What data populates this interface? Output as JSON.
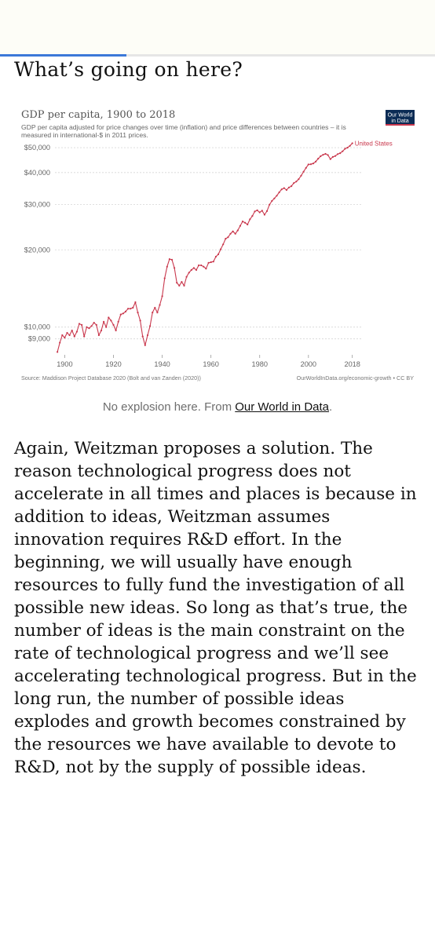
{
  "article": {
    "heading": "What’s going on here?",
    "caption_prefix": "No explosion here. From ",
    "caption_link": "Our World in Data",
    "caption_suffix": ".",
    "body_paragraph": "Again, Weitzman proposes a solution. The reason technological progress does not accelerate in all times and places is because in addition to ideas, Weitzman assumes innovation requires R&D effort. In the beginning, we will usually have enough resources to fully fund the investigation of all possible new ideas. So long as that’s true, the number of ideas is the main constraint on the rate of technological progress and we’ll see accelerating technological progress. But in the long run, the number of possible ideas explodes and growth becomes constrained by the resources we have available to devote to R&D, not by the supply of possible ideas."
  },
  "colors": {
    "line": "#c9384d",
    "logo_bg": "#0b2c55",
    "progress": "#3b78d8"
  },
  "chart_data": {
    "type": "line",
    "title": "GDP per capita, 1900 to 2018",
    "subtitle_line1": "GDP per capita adjusted for price changes over time (inflation) and price differences between countries – it is",
    "subtitle_line2": "measured in international-$ in 2011 prices.",
    "logo_line1": "Our World",
    "logo_line2": "in Data",
    "source": "Source: Maddison Project Database 2020 (Bolt and van Zanden (2020))",
    "license": "OurWorldInData.org/economic-growth • CC BY",
    "yscale": "log",
    "ylim": [
      7800,
      56000
    ],
    "xlim": [
      1896,
      2021
    ],
    "y_ticks": [
      9000,
      10000,
      20000,
      30000,
      40000,
      50000
    ],
    "y_tick_labels": [
      "$9,000",
      "$10,000",
      "$20,000",
      "$30,000",
      "$40,000",
      "$50,000"
    ],
    "x_ticks": [
      1900,
      1920,
      1940,
      1960,
      1980,
      2000,
      2018
    ],
    "grid": "horizontal dotted",
    "series": [
      {
        "name": "United States",
        "x": [
          1897,
          1898,
          1899,
          1900,
          1901,
          1902,
          1903,
          1904,
          1905,
          1906,
          1907,
          1908,
          1909,
          1910,
          1911,
          1912,
          1913,
          1914,
          1915,
          1916,
          1917,
          1918,
          1919,
          1920,
          1921,
          1922,
          1923,
          1924,
          1925,
          1926,
          1927,
          1928,
          1929,
          1930,
          1931,
          1932,
          1933,
          1934,
          1935,
          1936,
          1937,
          1938,
          1939,
          1940,
          1941,
          1942,
          1943,
          1944,
          1945,
          1946,
          1947,
          1948,
          1949,
          1950,
          1951,
          1952,
          1953,
          1954,
          1955,
          1956,
          1957,
          1958,
          1959,
          1960,
          1961,
          1962,
          1963,
          1964,
          1965,
          1966,
          1967,
          1968,
          1969,
          1970,
          1971,
          1972,
          1973,
          1974,
          1975,
          1976,
          1977,
          1978,
          1979,
          1980,
          1981,
          1982,
          1983,
          1984,
          1985,
          1986,
          1987,
          1988,
          1989,
          1990,
          1991,
          1992,
          1993,
          1994,
          1995,
          1996,
          1997,
          1998,
          1999,
          2000,
          2001,
          2002,
          2003,
          2004,
          2005,
          2006,
          2007,
          2008,
          2009,
          2010,
          2011,
          2012,
          2013,
          2014,
          2015,
          2016,
          2017,
          2018
        ],
        "y": [
          8000,
          8700,
          9300,
          9100,
          9500,
          9300,
          9700,
          9200,
          9600,
          10300,
          10200,
          9200,
          10000,
          9900,
          10100,
          10400,
          10200,
          9300,
          9700,
          10500,
          10000,
          10900,
          10600,
          10200,
          9700,
          10500,
          11200,
          11300,
          11500,
          11800,
          11800,
          11900,
          12500,
          11400,
          10600,
          9200,
          8500,
          9300,
          10100,
          11400,
          11900,
          11400,
          12200,
          13200,
          15500,
          17200,
          18400,
          18300,
          17000,
          14900,
          14500,
          15000,
          14500,
          15700,
          16300,
          16700,
          17000,
          16700,
          17400,
          17400,
          17200,
          16900,
          17800,
          17900,
          18000,
          18800,
          19200,
          20100,
          21000,
          22100,
          22400,
          23100,
          23600,
          23100,
          23800,
          24800,
          25800,
          25500,
          25100,
          26300,
          27100,
          28200,
          28500,
          28000,
          28400,
          27400,
          28300,
          30000,
          31000,
          31700,
          32500,
          33500,
          34400,
          34800,
          34200,
          35000,
          35400,
          36400,
          36900,
          37700,
          38900,
          40300,
          41700,
          43000,
          43100,
          43400,
          44100,
          45300,
          46300,
          46900,
          47300,
          46800,
          45100,
          46000,
          46400,
          47200,
          47600,
          48400,
          49500,
          50000,
          50800,
          52000
        ]
      }
    ]
  }
}
